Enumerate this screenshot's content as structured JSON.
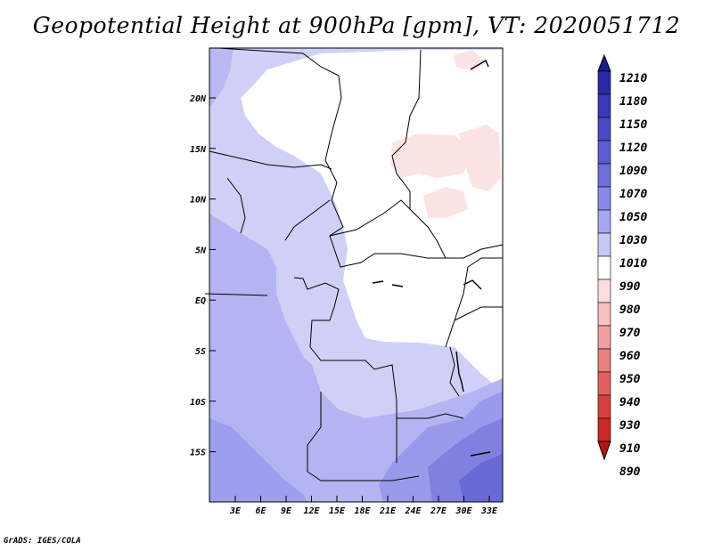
{
  "title": "Geopotential Height at 900hPa [gpm], VT: 2020051712",
  "credit": "GrADS: IGES/COLA",
  "map": {
    "lat_labels": [
      "20N",
      "15N",
      "10N",
      "5N",
      "EQ",
      "5S",
      "10S",
      "15S"
    ],
    "lon_labels": [
      "3E",
      "6E",
      "9E",
      "12E",
      "15E",
      "18E",
      "21E",
      "24E",
      "27E",
      "30E",
      "33E"
    ]
  },
  "colorbar": {
    "levels": [
      "1210",
      "1180",
      "1150",
      "1120",
      "1090",
      "1070",
      "1050",
      "1030",
      "1010",
      "990",
      "980",
      "970",
      "960",
      "950",
      "940",
      "930",
      "910",
      "890"
    ],
    "colors": [
      "#1c1c8c",
      "#2a2aa8",
      "#3a3ab8",
      "#4a4ac4",
      "#5c5cd0",
      "#7070dc",
      "#8a8ae6",
      "#a6a6ee",
      "#c8c8f6",
      "#ffffff",
      "#fcdede",
      "#f8c0c0",
      "#f0a0a0",
      "#e88080",
      "#e06060",
      "#d84040",
      "#cc2828",
      "#b81414"
    ]
  }
}
